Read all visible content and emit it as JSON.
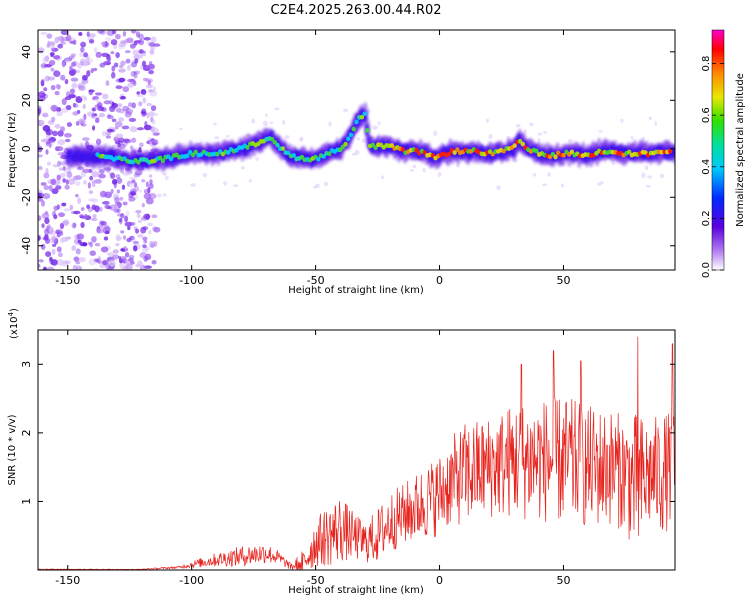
{
  "chart_data": [
    {
      "type": "heatmap",
      "title": "C2E4.2025.263.00.44.R02",
      "xlabel": "Height of straight line (km)",
      "ylabel": "Frequency (Hz)",
      "xlim": [
        -162,
        95
      ],
      "ylim": [
        -50,
        49
      ],
      "xticks": [
        -150,
        -100,
        -50,
        0,
        50
      ],
      "xtick_labels": [
        "-150",
        "-100",
        "-50",
        "0",
        "50"
      ],
      "yticks": [
        -40,
        -20,
        0,
        20,
        40
      ],
      "ytick_labels": [
        "-40",
        "-20",
        "0",
        "20",
        "40"
      ],
      "colorbar": {
        "label": "Normalized spectral amplitude",
        "range": [
          0.0,
          0.93
        ],
        "ticks": [
          0.0,
          0.2,
          0.4,
          0.6,
          0.8
        ],
        "tick_labels": [
          "0.0",
          "0.2",
          "0.4",
          "0.6",
          "0.8"
        ]
      },
      "ridge": {
        "description_values": "peak frequency track (Hz) vs height (km)",
        "x": [
          -135,
          -125,
          -118,
          -110,
          -100,
          -90,
          -80,
          -72,
          -68,
          -64,
          -60,
          -55,
          -50,
          -45,
          -40,
          -36,
          -33,
          -30,
          -28,
          -25,
          -20,
          -15,
          -10,
          -5,
          -2,
          0,
          5,
          10,
          15,
          20,
          25,
          30,
          32,
          35,
          40,
          45,
          50,
          55,
          60,
          65,
          70,
          75,
          80,
          85,
          90,
          94
        ],
        "y": [
          -3,
          -5,
          -5,
          -4,
          -2,
          -2,
          0,
          3,
          5,
          0,
          -3,
          -4,
          -4,
          -2,
          0,
          5,
          12,
          14,
          1,
          1,
          1,
          -1,
          -1,
          -2,
          -4,
          -3,
          -1,
          -1,
          -1,
          -2,
          -1,
          0,
          4,
          0,
          -2,
          -3,
          -2,
          -2,
          -3,
          -1,
          -1,
          -2,
          -2,
          -2,
          -1,
          -2
        ]
      },
      "noise_region_km": [
        -162,
        -118
      ]
    },
    {
      "type": "line",
      "title": "",
      "xlabel": "Height of straight line (km)",
      "ylabel": "SNR (10 * v/v)",
      "yscale_note": "(x10",
      "yscale_exp": "4",
      "xlim": [
        -162,
        95
      ],
      "ylim": [
        0,
        3.5
      ],
      "xticks": [
        -150,
        -100,
        -50,
        0,
        50
      ],
      "xtick_labels": [
        "-150",
        "-100",
        "-50",
        "0",
        "50"
      ],
      "yticks": [
        1,
        2,
        3
      ],
      "ytick_labels": [
        "1",
        "2",
        "3"
      ],
      "color": "#e8231e",
      "envelope": {
        "description_values": "approximate SNR envelope (x10^4) vs height (km)",
        "x": [
          -162,
          -140,
          -120,
          -105,
          -100,
          -90,
          -80,
          -70,
          -65,
          -60,
          -55,
          -50,
          -45,
          -40,
          -35,
          -30,
          -25,
          -20,
          -15,
          -10,
          -5,
          0,
          5,
          10,
          20,
          30,
          40,
          50,
          60,
          70,
          75,
          80,
          85,
          90,
          95
        ],
        "mean": [
          0.0,
          0.0,
          0.01,
          0.04,
          0.08,
          0.15,
          0.2,
          0.25,
          0.18,
          0.05,
          0.1,
          0.4,
          0.5,
          0.6,
          0.5,
          0.4,
          0.5,
          0.7,
          0.8,
          0.9,
          1.0,
          1.1,
          1.3,
          1.4,
          1.5,
          1.6,
          1.6,
          1.6,
          1.5,
          1.5,
          1.4,
          1.2,
          1.4,
          1.4,
          1.5
        ],
        "amp": [
          0.0,
          0.0,
          0.005,
          0.02,
          0.05,
          0.1,
          0.15,
          0.15,
          0.1,
          0.05,
          0.2,
          0.35,
          0.45,
          0.5,
          0.35,
          0.3,
          0.4,
          0.45,
          0.45,
          0.5,
          0.55,
          0.6,
          0.65,
          0.75,
          0.75,
          0.85,
          0.9,
          0.95,
          0.9,
          0.85,
          0.85,
          1.1,
          0.8,
          0.9,
          0.8
        ]
      },
      "peaks": [
        {
          "x": 33,
          "y": 3.0
        },
        {
          "x": 46,
          "y": 3.2
        },
        {
          "x": 57,
          "y": 3.05
        },
        {
          "x": 80,
          "y": 3.4
        },
        {
          "x": 94,
          "y": 3.3
        }
      ]
    }
  ]
}
